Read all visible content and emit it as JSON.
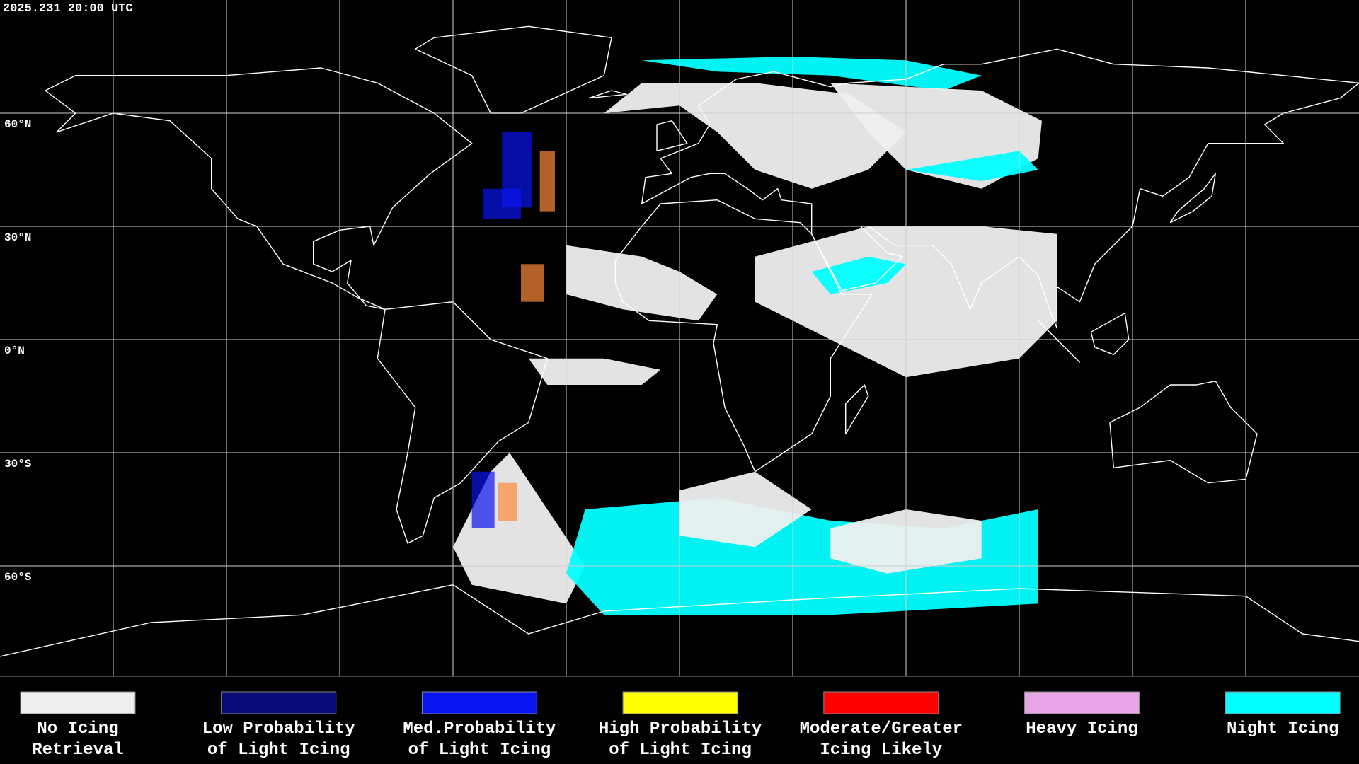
{
  "header": {
    "timestamp": "2025.231 20:00 UTC"
  },
  "map": {
    "latitude_labels": [
      "60°N",
      "30°N",
      "0°N",
      "30°S",
      "60°S"
    ]
  },
  "legend": {
    "items": [
      {
        "color": "#efefef",
        "lines": [
          "No Icing",
          "Retrieval"
        ]
      },
      {
        "color": "#0a0a78",
        "lines": [
          "Low Probability",
          "of Light Icing"
        ]
      },
      {
        "color": "#0a14f0",
        "lines": [
          "Med.Probability",
          "of Light Icing"
        ]
      },
      {
        "color": "#ffff00",
        "lines": [
          "High Probability",
          "of Light Icing"
        ]
      },
      {
        "color": "#ff0000",
        "lines": [
          "Moderate/Greater",
          "Icing Likely"
        ]
      },
      {
        "color": "#e6a6e6",
        "lines": [
          "Heavy Icing"
        ]
      },
      {
        "color": "#00ffff",
        "lines": [
          "Night Icing"
        ]
      }
    ]
  }
}
